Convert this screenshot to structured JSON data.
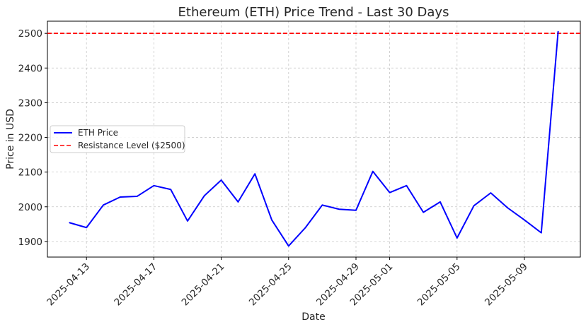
{
  "chart_data": {
    "type": "line",
    "title": "Ethereum (ETH) Price Trend - Last 30 Days",
    "xlabel": "Date",
    "ylabel": "Price in USD",
    "ylim": [
      1855,
      2535
    ],
    "yticks": [
      1900,
      2000,
      2100,
      2200,
      2300,
      2400,
      2500
    ],
    "xticks": [
      "2025-04-13",
      "2025-04-17",
      "2025-04-21",
      "2025-04-25",
      "2025-04-29",
      "2025-05-01",
      "2025-05-05",
      "2025-05-09"
    ],
    "grid": true,
    "legend_position": "center-left",
    "series": [
      {
        "name": "ETH Price",
        "color": "#0000ff",
        "x": [
          "2025-04-12",
          "2025-04-13",
          "2025-04-14",
          "2025-04-15",
          "2025-04-16",
          "2025-04-17",
          "2025-04-18",
          "2025-04-19",
          "2025-04-20",
          "2025-04-21",
          "2025-04-22",
          "2025-04-23",
          "2025-04-24",
          "2025-04-25",
          "2025-04-26",
          "2025-04-27",
          "2025-04-28",
          "2025-04-29",
          "2025-04-30",
          "2025-05-01",
          "2025-05-02",
          "2025-05-03",
          "2025-05-04",
          "2025-05-05",
          "2025-05-06",
          "2025-05-07",
          "2025-05-08",
          "2025-05-09",
          "2025-05-10",
          "2025-05-11"
        ],
        "values": [
          1954,
          1940,
          2005,
          2028,
          2030,
          2061,
          2050,
          1959,
          2032,
          2077,
          2014,
          2095,
          1962,
          1887,
          1940,
          2005,
          1993,
          1990,
          2102,
          2041,
          2061,
          1984,
          2014,
          1910,
          2003,
          2040,
          1997,
          1962,
          1925,
          2505
        ]
      }
    ],
    "reference_lines": [
      {
        "name": "Resistance Level ($2500)",
        "value": 2500,
        "color": "#ff0000",
        "style": "dashed"
      }
    ]
  }
}
